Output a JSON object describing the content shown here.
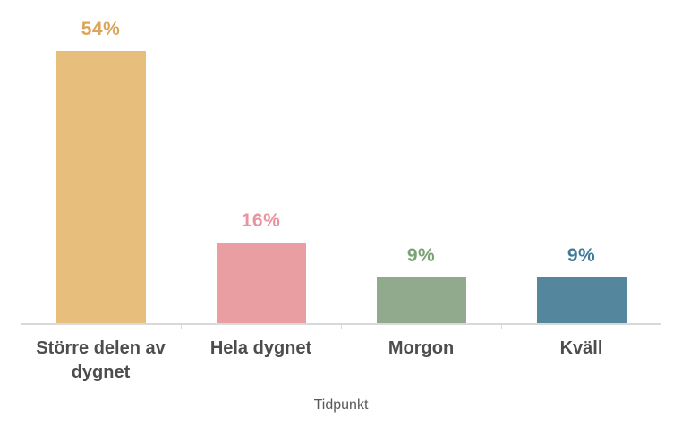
{
  "chart_data": {
    "type": "bar",
    "title": "",
    "xlabel": "Tidpunkt",
    "ylabel": "",
    "categories": [
      "Större delen av dygnet",
      "Hela dygnet",
      "Morgon",
      "Kväll"
    ],
    "values": [
      54,
      16,
      9,
      9
    ],
    "value_labels": [
      "54%",
      "16%",
      "9%",
      "9%"
    ],
    "ylim": [
      0,
      60
    ],
    "grid": false,
    "legend": "none",
    "background": "#FFFFFF",
    "axis_color": "#D9D9D9",
    "category_label_color": "#4D4D4D",
    "xlabel_color": "#595959",
    "bar_colors": [
      "#E8BE7D",
      "#E99EA2",
      "#91AA8D",
      "#54879E"
    ],
    "value_label_colors": [
      "#DDA55C",
      "#E8939E",
      "#7BA277",
      "#41799B"
    ]
  }
}
